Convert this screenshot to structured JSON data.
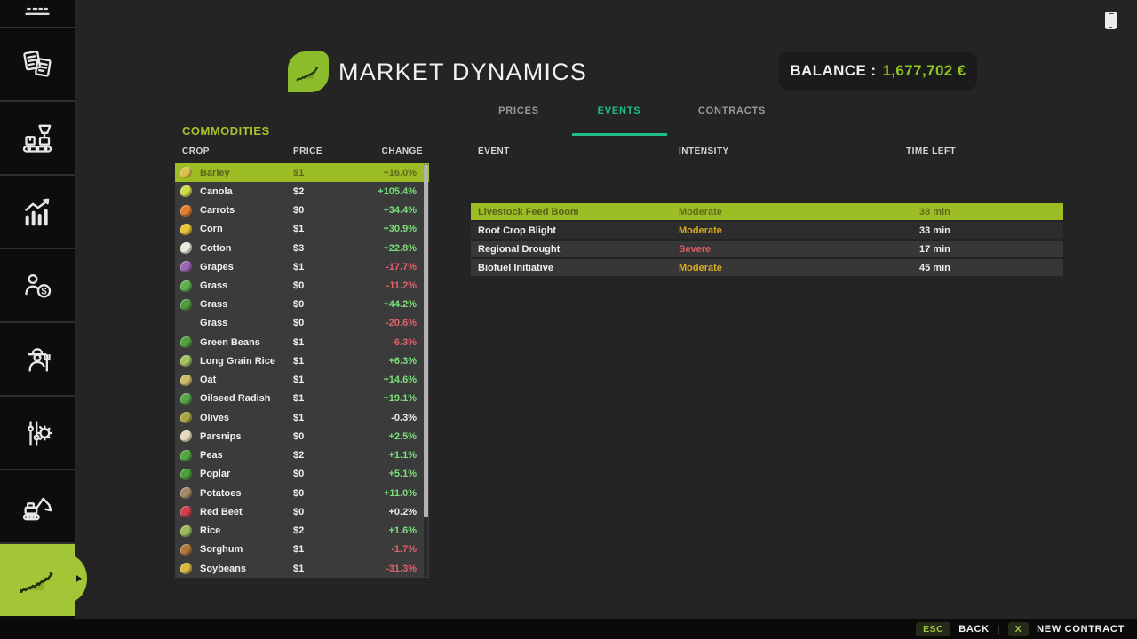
{
  "header": {
    "title": "MARKET DYNAMICS",
    "balance_label": "BALANCE :",
    "balance_value": "1,677,702 €"
  },
  "tabs": [
    {
      "label": "PRICES",
      "active": false
    },
    {
      "label": "EVENTS",
      "active": true
    },
    {
      "label": "CONTRACTS",
      "active": false
    }
  ],
  "commodities": {
    "section_label": "COMMODITIES",
    "columns": [
      "CROP",
      "PRICE",
      "CHANGE"
    ],
    "rows": [
      {
        "name": "Barley",
        "price": "$1",
        "change": "+16.0%",
        "tone": "pos",
        "icon_color": "#d8c04a",
        "selected": true
      },
      {
        "name": "Canola",
        "price": "$2",
        "change": "+105.4%",
        "tone": "pos",
        "icon_color": "#ceda46",
        "selected": false
      },
      {
        "name": "Carrots",
        "price": "$0",
        "change": "+34.4%",
        "tone": "pos",
        "icon_color": "#e08030",
        "selected": false
      },
      {
        "name": "Corn",
        "price": "$1",
        "change": "+30.9%",
        "tone": "pos",
        "icon_color": "#e6c637",
        "selected": false
      },
      {
        "name": "Cotton",
        "price": "$3",
        "change": "+22.8%",
        "tone": "pos",
        "icon_color": "#e9e9df",
        "selected": false
      },
      {
        "name": "Grapes",
        "price": "$1",
        "change": "-17.7%",
        "tone": "neg",
        "icon_color": "#9a66b5",
        "selected": false
      },
      {
        "name": "Grass",
        "price": "$0",
        "change": "-11.2%",
        "tone": "neg",
        "icon_color": "#61b04a",
        "selected": false
      },
      {
        "name": "Grass",
        "price": "$0",
        "change": "+44.2%",
        "tone": "pos",
        "icon_color": "#4f9a3d",
        "selected": false
      },
      {
        "name": "Grass",
        "price": "$0",
        "change": "-20.6%",
        "tone": "neg",
        "icon_color": null,
        "selected": false
      },
      {
        "name": "Green Beans",
        "price": "$1",
        "change": "-6.3%",
        "tone": "neg",
        "icon_color": "#55a23c",
        "selected": false
      },
      {
        "name": "Long Grain Rice",
        "price": "$1",
        "change": "+6.3%",
        "tone": "pos",
        "icon_color": "#a3c25e",
        "selected": false
      },
      {
        "name": "Oat",
        "price": "$1",
        "change": "+14.6%",
        "tone": "pos",
        "icon_color": "#cfba6b",
        "selected": false
      },
      {
        "name": "Oilseed Radish",
        "price": "$1",
        "change": "+19.1%",
        "tone": "pos",
        "icon_color": "#57a546",
        "selected": false
      },
      {
        "name": "Olives",
        "price": "$1",
        "change": "-0.3%",
        "tone": "neu",
        "icon_color": "#aaa845",
        "selected": false
      },
      {
        "name": "Parsnips",
        "price": "$0",
        "change": "+2.5%",
        "tone": "pos",
        "icon_color": "#e6dcbb",
        "selected": false
      },
      {
        "name": "Peas",
        "price": "$2",
        "change": "+1.1%",
        "tone": "pos",
        "icon_color": "#50a83e",
        "selected": false
      },
      {
        "name": "Poplar",
        "price": "$0",
        "change": "+5.1%",
        "tone": "pos",
        "icon_color": "#4c9e3d",
        "selected": false
      },
      {
        "name": "Potatoes",
        "price": "$0",
        "change": "+11.0%",
        "tone": "pos",
        "icon_color": "#a58a66",
        "selected": false
      },
      {
        "name": "Red Beet",
        "price": "$0",
        "change": "+0.2%",
        "tone": "neu",
        "icon_color": "#cc3f4e",
        "selected": false
      },
      {
        "name": "Rice",
        "price": "$2",
        "change": "+1.6%",
        "tone": "pos",
        "icon_color": "#9eba5e",
        "selected": false
      },
      {
        "name": "Sorghum",
        "price": "$1",
        "change": "-1.7%",
        "tone": "neg",
        "icon_color": "#b2793a",
        "selected": false
      },
      {
        "name": "Soybeans",
        "price": "$1",
        "change": "-31.3%",
        "tone": "neg",
        "icon_color": "#d9ba40",
        "selected": false
      }
    ]
  },
  "events": {
    "columns": [
      "EVENT",
      "INTENSITY",
      "TIME LEFT"
    ],
    "rows": [
      {
        "name": "Livestock Feed Boom",
        "intensity": "Moderate",
        "intensity_tone": "moderate",
        "time_left": "38 min",
        "selected": true,
        "shade": ""
      },
      {
        "name": "Root Crop Blight",
        "intensity": "Moderate",
        "intensity_tone": "moderate",
        "time_left": "33 min",
        "selected": false,
        "shade": "dark"
      },
      {
        "name": "Regional Drought",
        "intensity": "Severe",
        "intensity_tone": "severe",
        "time_left": "17 min",
        "selected": false,
        "shade": ""
      },
      {
        "name": "Biofuel Initiative",
        "intensity": "Moderate",
        "intensity_tone": "moderate",
        "time_left": "45 min",
        "selected": false,
        "shade": ""
      }
    ]
  },
  "sidebar": {
    "items": [
      {
        "icon": "partial-vehicle-icon",
        "active": false
      },
      {
        "icon": "documents-icon",
        "active": false
      },
      {
        "icon": "production-icon",
        "active": false
      },
      {
        "icon": "statistics-icon",
        "active": false
      },
      {
        "icon": "finances-icon",
        "active": false
      },
      {
        "icon": "farmer-icon",
        "active": false
      },
      {
        "icon": "settings-icon",
        "active": false
      },
      {
        "icon": "construction-icon",
        "active": false
      },
      {
        "icon": "market-dynamics-icon",
        "active": true
      }
    ]
  },
  "footer": {
    "esc_key": "ESC",
    "back_label": "BACK",
    "divider": "|",
    "x_key": "X",
    "new_contract_label": "NEW CONTRACT"
  },
  "colors": {
    "accent_lime": "#9dbd25",
    "sidebar_active": "#a3c636",
    "accent_mint": "#1dbd89",
    "balance_green": "#8fc722",
    "positive": "#79df79",
    "negative": "#e4606b",
    "moderate": "#d9ab25",
    "severe": "#d95b63"
  }
}
